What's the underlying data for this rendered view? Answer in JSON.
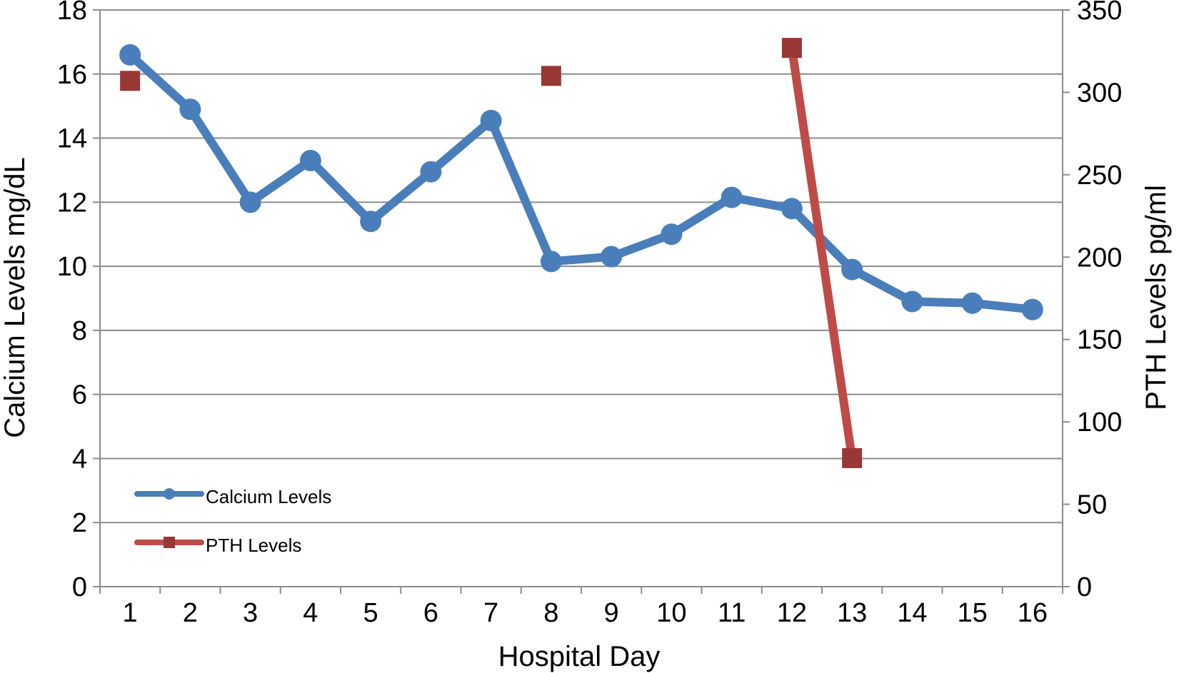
{
  "chart_data": {
    "type": "line",
    "x": [
      1,
      2,
      3,
      4,
      5,
      6,
      7,
      8,
      9,
      10,
      11,
      12,
      13,
      14,
      15,
      16
    ],
    "xlabel": "Hospital Day",
    "ylabel_left": "Calcium Levels mg/dL",
    "ylabel_right": "PTH Levels pg/ml",
    "ylim_left": [
      0,
      18
    ],
    "ylim_right": [
      0,
      350
    ],
    "yticks_left": [
      0,
      2,
      4,
      6,
      8,
      10,
      12,
      14,
      16,
      18
    ],
    "yticks_right": [
      0,
      50,
      100,
      150,
      200,
      250,
      300,
      350
    ],
    "grid": true,
    "legend_position": "bottom-left",
    "series": [
      {
        "name": "Calcium Levels",
        "axis": "left",
        "marker": "circle",
        "color": "#4a7ebb",
        "points": [
          [
            1,
            16.6
          ],
          [
            2,
            14.9
          ],
          [
            3,
            12.0
          ],
          [
            4,
            13.3
          ],
          [
            5,
            11.4
          ],
          [
            6,
            12.95
          ],
          [
            7,
            14.55
          ],
          [
            8,
            10.15
          ],
          [
            9,
            10.3
          ],
          [
            10,
            11.0
          ],
          [
            11,
            12.15
          ],
          [
            12,
            11.8
          ],
          [
            13,
            9.9
          ],
          [
            14,
            8.9
          ],
          [
            15,
            8.85
          ],
          [
            16,
            8.65
          ]
        ]
      },
      {
        "name": "PTH Levels",
        "axis": "right",
        "marker": "square",
        "color": "#be4b48",
        "marker_color": "#993734",
        "points": [
          [
            1,
            307
          ],
          [
            8,
            310
          ],
          [
            12,
            327
          ],
          [
            13,
            78
          ]
        ],
        "connected_segments": [
          [
            12,
            13
          ]
        ]
      }
    ]
  }
}
